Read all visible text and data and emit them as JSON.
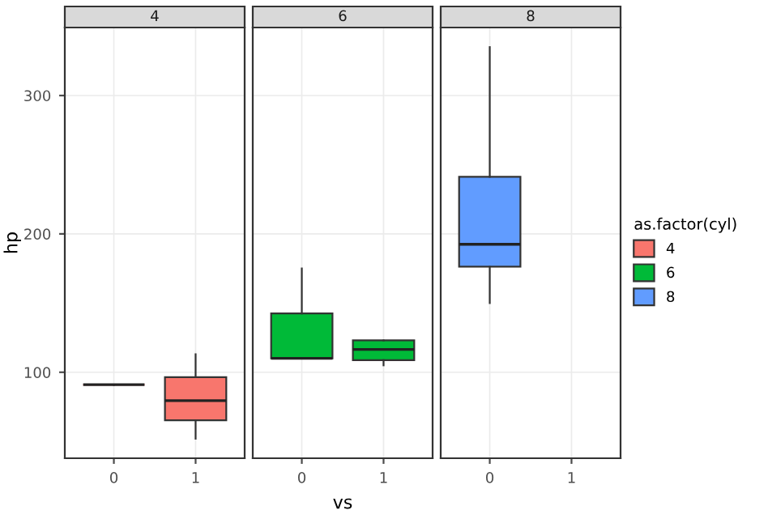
{
  "chart_data": [
    {
      "type": "box",
      "title": "4",
      "ylabel": "hp",
      "categories": [
        "0",
        "1"
      ],
      "ylim": [
        37.85,
        349.15
      ],
      "yticks": [
        100,
        200,
        300
      ],
      "grid": true,
      "series": [
        {
          "name": "4",
          "color": "#f8766d",
          "boxes": [
            {
              "low": 91,
              "q1": 91,
              "median": 91,
              "q3": 91,
              "high": 91
            },
            {
              "low": 52,
              "q1": 65.25,
              "median": 79.5,
              "q3": 96.5,
              "high": 113
            }
          ]
        }
      ]
    },
    {
      "type": "box",
      "title": "6",
      "xlabel": "vs",
      "categories": [
        "0",
        "1"
      ],
      "ylim": [
        37.85,
        349.15
      ],
      "tick_labels": "x",
      "grid": true,
      "series": [
        {
          "name": "6",
          "color": "#00ba38",
          "boxes": [
            {
              "low": 110,
              "q1": 110,
              "median": 110,
              "q3": 142.5,
              "high": 175
            },
            {
              "low": 105,
              "q1": 108.75,
              "median": 116.5,
              "q3": 123,
              "high": 123
            }
          ]
        }
      ]
    },
    {
      "type": "box",
      "title": "8",
      "categories": [
        "0",
        "1"
      ],
      "ylim": [
        37.85,
        349.15
      ],
      "tick_labels": "x",
      "grid": true,
      "legend": "right",
      "legend_title": "as.factor(cyl)",
      "series": [
        {
          "name": "8",
          "color": "#619cff",
          "boxes": [
            {
              "low": 150,
              "q1": 176.25,
              "median": 192.5,
              "q3": 241.25,
              "high": 335
            },
            null
          ]
        }
      ]
    }
  ]
}
